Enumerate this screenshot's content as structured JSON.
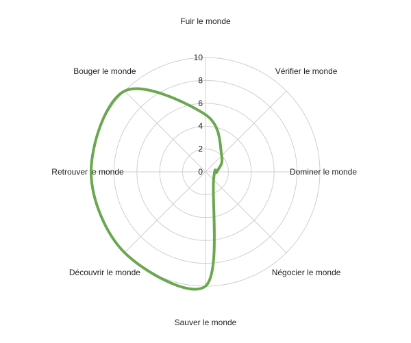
{
  "chart_data": {
    "type": "radar",
    "title": "",
    "axes": [
      "Fuir le monde",
      "Vérifier le monde",
      "Dominer le monde",
      "Négocier le monde",
      "Sauver le monde",
      "Découvrir le monde",
      "Retrouver le monde",
      "Bouger le monde"
    ],
    "r_ticks": [
      0,
      2,
      4,
      6,
      8,
      10
    ],
    "rlim": [
      0,
      10
    ],
    "grid": true,
    "legend": "none",
    "series": [
      {
        "values": [
          5,
          2,
          1,
          1,
          10,
          10,
          10,
          10
        ],
        "color": "#6aa84f"
      }
    ]
  }
}
